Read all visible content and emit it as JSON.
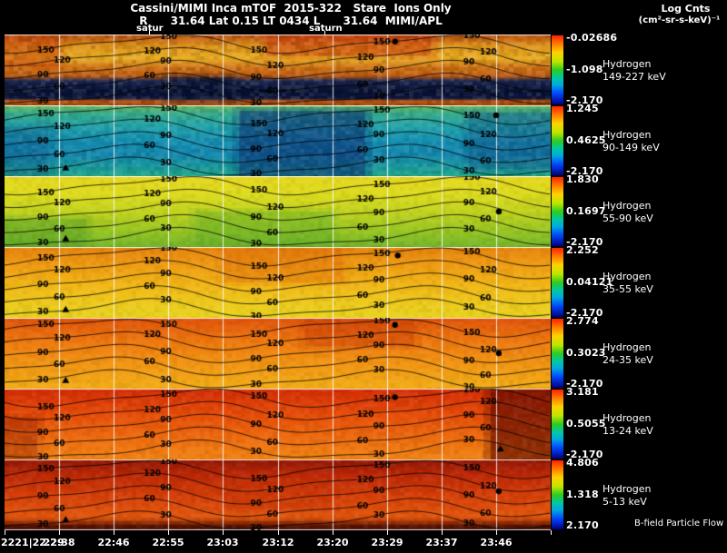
{
  "header": {
    "title": "Cassini/MIMI Inca mTOF  2015-322   Stare  Ions Only",
    "info_line": "R      31.64 Lat 0.15 LT 0434 L      31.64  MIMI/APL",
    "legend_title": "Log Cnts",
    "legend_units": "(cm²-sr-s-keV)⁻¹",
    "saturn_label_1": "satur",
    "saturn_label_2": "saturn"
  },
  "footer": {
    "flow_label": "B-field Particle Flow"
  },
  "chart_data": {
    "type": "heatmap",
    "title": "Cassini/MIMI Inca mTOF 2015-322 Stare Ions Only",
    "subtitle": "R 31.64 Lat 0.15 LT 0434 L 31.64 MIMI/APL",
    "colorbar_title": "Log Cnts (cm²-sr-s-keV)⁻¹",
    "x_axis_labels": [
      "2221|22:29",
      "22:38",
      "22:46",
      "22:55",
      "23:03",
      "23:12",
      "23:20",
      "23:29",
      "23:37",
      "23:46"
    ],
    "contour_levels": [
      30,
      60,
      90,
      120,
      150
    ],
    "colorbar_gradient": [
      [
        0,
        "#ff2000"
      ],
      [
        0.12,
        "#ff7a00"
      ],
      [
        0.25,
        "#ffd400"
      ],
      [
        0.38,
        "#bfe600"
      ],
      [
        0.5,
        "#2ecc20"
      ],
      [
        0.62,
        "#00c8a8"
      ],
      [
        0.72,
        "#00a8e0"
      ],
      [
        0.84,
        "#0048ff"
      ],
      [
        1,
        "#000080"
      ]
    ],
    "panels": [
      {
        "species": "Hydrogen",
        "energy_range": "149-227 keV",
        "cb_labels": [
          "-0.02686",
          "-1.098",
          "-2.170"
        ],
        "palette": [
          [
            0,
            "#b84a0c"
          ],
          [
            0.15,
            "#dd8f18"
          ],
          [
            0.33,
            "#e9ad20"
          ],
          [
            0.46,
            "#d07414"
          ],
          [
            0.58,
            "#c05c10"
          ],
          [
            0.66,
            "#1a2550"
          ],
          [
            0.8,
            "#071030"
          ],
          [
            0.9,
            "#0c1740"
          ],
          [
            0.94,
            "#b85510"
          ],
          [
            1,
            "#a64408"
          ]
        ],
        "features": [
          {
            "x0": 0.48,
            "x1": 0.78,
            "y0": 0,
            "y1": 0.3,
            "c": "#c62f08",
            "a": 0.4
          },
          {
            "x0": 0,
            "x1": 0.1,
            "y0": 0.05,
            "y1": 0.45,
            "c": "#c03008",
            "a": 0.35
          },
          {
            "x0": 0.3,
            "x1": 0.42,
            "y0": 0.6,
            "y1": 0.92,
            "c": "#061030",
            "a": 0.5
          }
        ],
        "noise": 0.3,
        "phase": 1.1,
        "markers": [
          {
            "x": 0.715,
            "y": 0.1,
            "s": "circle"
          }
        ]
      },
      {
        "species": "Hydrogen",
        "energy_range": "90-149 keV",
        "cb_labels": [
          "1.245",
          "0.4625",
          "-2.170"
        ],
        "palette": [
          [
            0,
            "#67b85c"
          ],
          [
            0.12,
            "#35ab8c"
          ],
          [
            0.3,
            "#20a2a8"
          ],
          [
            0.5,
            "#1590b2"
          ],
          [
            0.7,
            "#1286ac"
          ],
          [
            0.88,
            "#189a9c"
          ],
          [
            1,
            "#23a88c"
          ]
        ],
        "features": [
          {
            "x0": 0.43,
            "x1": 0.66,
            "y0": 0.08,
            "y1": 1,
            "c": "#0a2f72",
            "a": 0.5
          },
          {
            "x0": 0.85,
            "x1": 1,
            "y0": 0.1,
            "y1": 0.9,
            "c": "#0c3a78",
            "a": 0.25
          },
          {
            "x0": 0,
            "x1": 0.08,
            "y0": 0.3,
            "y1": 1,
            "c": "#0c3a78",
            "a": 0.2
          }
        ],
        "noise": 0.22,
        "phase": 2.1,
        "markers": [
          {
            "x": 0.112,
            "y": 0.88,
            "s": "triangle"
          },
          {
            "x": 0.9,
            "y": 0.14,
            "s": "circle"
          }
        ]
      },
      {
        "species": "Hydrogen",
        "energy_range": "55-90 keV",
        "cb_labels": [
          "1.830",
          "0.1697",
          "-2.170"
        ],
        "palette": [
          [
            0,
            "#e6d81e"
          ],
          [
            0.25,
            "#dedc1e"
          ],
          [
            0.5,
            "#c2d41e"
          ],
          [
            0.75,
            "#9cc822"
          ],
          [
            1,
            "#74b62a"
          ]
        ],
        "features": [
          {
            "x0": 0.35,
            "x1": 0.6,
            "y0": 0.5,
            "y1": 1,
            "c": "#58a828",
            "a": 0.3
          },
          {
            "x0": 0,
            "x1": 0.15,
            "y0": 0.6,
            "y1": 1,
            "c": "#4f9e26",
            "a": 0.35
          }
        ],
        "noise": 0.12,
        "phase": 0.9,
        "markers": [
          {
            "x": 0.112,
            "y": 0.88,
            "s": "triangle"
          },
          {
            "x": 0.905,
            "y": 0.5,
            "s": "circle"
          }
        ]
      },
      {
        "species": "Hydrogen",
        "energy_range": "35-55 keV",
        "cb_labels": [
          "2.252",
          "0.04121",
          "-2.170"
        ],
        "palette": [
          [
            0,
            "#e5820e"
          ],
          [
            0.25,
            "#f09c12"
          ],
          [
            0.55,
            "#f2b816"
          ],
          [
            0.8,
            "#eecb1c"
          ],
          [
            1,
            "#e8d41e"
          ]
        ],
        "features": [
          {
            "x0": 0.4,
            "x1": 0.62,
            "y0": 0,
            "y1": 0.5,
            "c": "#e06a0a",
            "a": 0.3
          }
        ],
        "noise": 0.12,
        "phase": 1.6,
        "markers": [
          {
            "x": 0.112,
            "y": 0.88,
            "s": "triangle"
          },
          {
            "x": 0.72,
            "y": 0.12,
            "s": "circle"
          }
        ]
      },
      {
        "species": "Hydrogen",
        "energy_range": "24-35 keV",
        "cb_labels": [
          "2.774",
          "0.3023",
          "-2.170"
        ],
        "palette": [
          [
            0,
            "#df520a"
          ],
          [
            0.3,
            "#ee750e"
          ],
          [
            0.6,
            "#f29212"
          ],
          [
            1,
            "#f2ae16"
          ]
        ],
        "features": [
          {
            "x0": 0.55,
            "x1": 0.75,
            "y0": 0,
            "y1": 0.4,
            "c": "#c83c06",
            "a": 0.35
          }
        ],
        "noise": 0.12,
        "phase": 2.5,
        "markers": [
          {
            "x": 0.112,
            "y": 0.88,
            "s": "triangle"
          },
          {
            "x": 0.715,
            "y": 0.1,
            "s": "circle"
          },
          {
            "x": 0.905,
            "y": 0.5,
            "s": "circle"
          }
        ]
      },
      {
        "species": "Hydrogen",
        "energy_range": "13-24 keV",
        "cb_labels": [
          "3.181",
          "0.5055",
          "-2.170"
        ],
        "palette": [
          [
            0,
            "#d42c06"
          ],
          [
            0.35,
            "#e64b08"
          ],
          [
            0.7,
            "#ef6c0e"
          ],
          [
            1,
            "#f28412"
          ]
        ],
        "features": [
          {
            "x0": 0.89,
            "x1": 1,
            "y0": 0,
            "y1": 1,
            "c": "#600a00",
            "a": 0.55
          },
          {
            "x0": 0,
            "x1": 0.06,
            "y0": 0.4,
            "y1": 1,
            "c": "#8a1602",
            "a": 0.3
          }
        ],
        "noise": 0.14,
        "phase": 0.4,
        "markers": [
          {
            "x": 0.715,
            "y": 0.12,
            "s": "circle"
          },
          {
            "x": 0.908,
            "y": 0.85,
            "s": "triangle"
          }
        ]
      },
      {
        "species": "Hydrogen",
        "energy_range": "5-13 keV",
        "cb_labels": [
          "4.806",
          "1.318",
          "2.170"
        ],
        "palette": [
          [
            0,
            "#8f1605"
          ],
          [
            0.2,
            "#bb2706"
          ],
          [
            0.5,
            "#d63e08"
          ],
          [
            0.8,
            "#e2560c"
          ],
          [
            1,
            "#7a1a02"
          ]
        ],
        "features": [
          {
            "x0": 0,
            "x1": 1,
            "y0": 0.92,
            "y1": 1,
            "c": "#2e0400",
            "a": 0.5
          },
          {
            "x0": 0.4,
            "x1": 0.6,
            "y0": 0.3,
            "y1": 0.7,
            "c": "#c33206",
            "a": 0.3
          }
        ],
        "noise": 0.14,
        "phase": 1.9,
        "markers": [
          {
            "x": 0.112,
            "y": 0.85,
            "s": "triangle"
          },
          {
            "x": 0.905,
            "y": 0.45,
            "s": "circle"
          }
        ]
      }
    ]
  }
}
